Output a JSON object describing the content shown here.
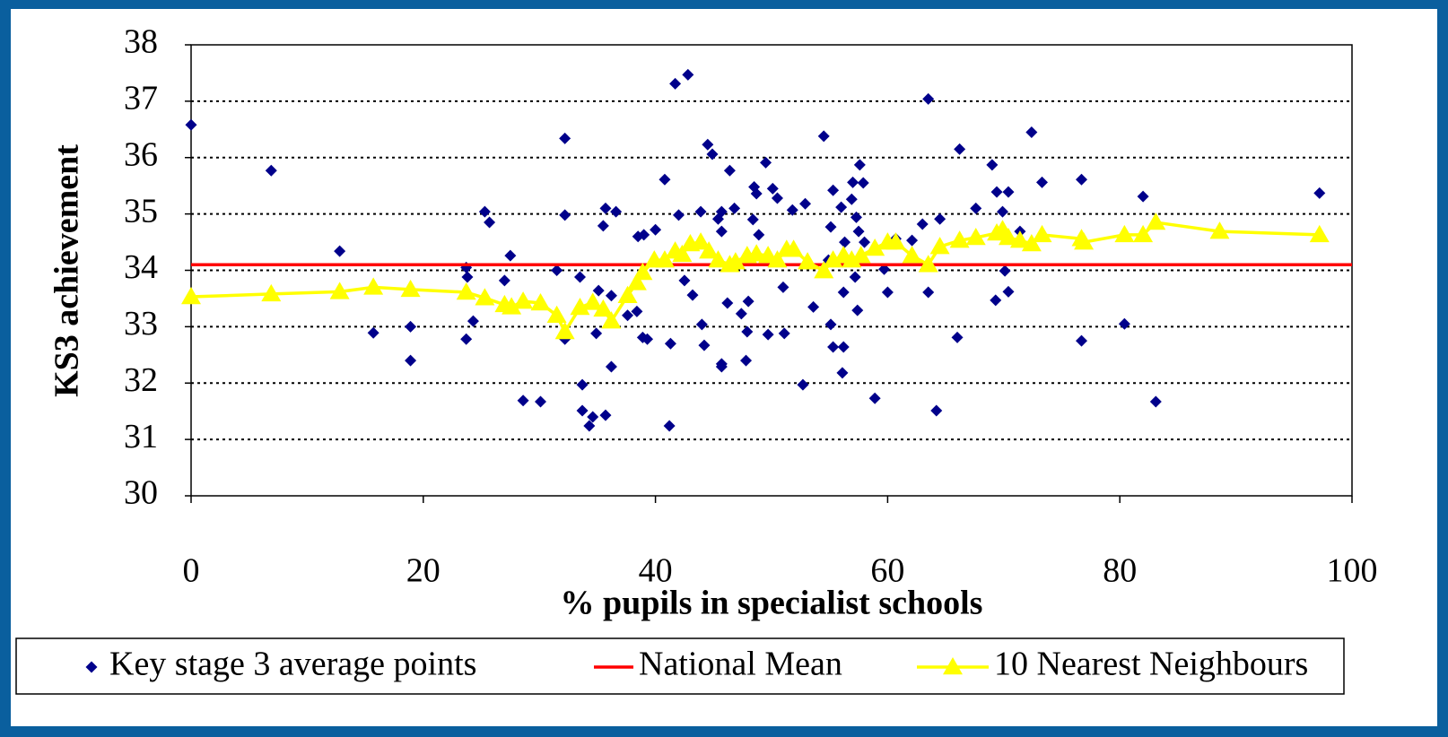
{
  "chart_data": {
    "type": "scatter",
    "xlabel": "% pupils in specialist schools",
    "ylabel": "KS3 achievement",
    "xlim": [
      0,
      100
    ],
    "xticks": [
      0,
      20,
      40,
      60,
      80,
      100
    ],
    "ylim": [
      30,
      38
    ],
    "yticks": [
      30,
      31,
      32,
      33,
      34,
      35,
      36,
      37,
      38
    ],
    "grid": true,
    "legend": "bottom",
    "series": [
      {
        "name": "Key stage 3 average points",
        "type": "scatter",
        "marker": "diamond",
        "color": "#00008b",
        "x": [
          0,
          6.9,
          12.8,
          15.7,
          18.9,
          18.9,
          23.7,
          23.8,
          23.7,
          24.3,
          25.3,
          25.7,
          27.5,
          27.0,
          28.6,
          30.1,
          31.5,
          32.2,
          32.2,
          32.2,
          33.5,
          33.7,
          33.7,
          34.3,
          34.6,
          34.9,
          35.1,
          35.5,
          35.7,
          35.7,
          36.6,
          36.2,
          36.2,
          37.6,
          38.4,
          38.5,
          39.0,
          38.9,
          39.3,
          40.0,
          40.8,
          41.3,
          41.2,
          41.7,
          42.8,
          42.0,
          42.5,
          43.2,
          43.9,
          44.0,
          44.2,
          44.5,
          44.9,
          45.4,
          45.7,
          45.7,
          45.7,
          45.7,
          46.4,
          46.2,
          46.8,
          47.4,
          48.0,
          47.9,
          47.8,
          48.5,
          48.4,
          48.7,
          48.9,
          49.5,
          49.7,
          50.1,
          50.5,
          51.1,
          51.0,
          51.8,
          52.9,
          52.7,
          53.6,
          54.5,
          54.9,
          55.3,
          55.1,
          55.1,
          55.3,
          56.0,
          56.3,
          56.2,
          56.2,
          56.1,
          56.9,
          57.0,
          57.2,
          57.3,
          57.4,
          57.5,
          57.6,
          57.9,
          58.0,
          58.9,
          59.7,
          60.0,
          60.7,
          62.1,
          63.0,
          63.5,
          63.5,
          64.2,
          64.5,
          66.0,
          66.2,
          67.6,
          69.0,
          69.4,
          69.3,
          69.9,
          70.1,
          70.4,
          70.4,
          71.4,
          72.4,
          73.3,
          76.7,
          76.7,
          80.4,
          82.0,
          83.1,
          97.2
        ],
        "values": [
          36.58,
          35.77,
          34.34,
          32.89,
          33.0,
          32.4,
          34.05,
          33.88,
          32.78,
          33.1,
          35.04,
          34.85,
          34.26,
          33.82,
          31.69,
          31.67,
          34.0,
          36.34,
          34.98,
          32.78,
          33.88,
          31.97,
          31.51,
          31.24,
          31.4,
          32.88,
          33.64,
          34.79,
          35.1,
          31.43,
          35.04,
          33.55,
          32.29,
          33.2,
          33.27,
          34.6,
          34.63,
          32.81,
          32.78,
          34.72,
          35.61,
          32.7,
          31.24,
          37.31,
          37.47,
          34.98,
          33.82,
          33.56,
          35.04,
          33.04,
          32.67,
          36.23,
          36.06,
          34.91,
          35.04,
          34.69,
          32.34,
          32.29,
          35.77,
          33.42,
          35.1,
          33.23,
          33.45,
          32.91,
          32.4,
          35.48,
          34.9,
          35.36,
          34.63,
          35.91,
          32.86,
          35.45,
          35.28,
          32.88,
          33.7,
          35.07,
          35.18,
          31.97,
          33.35,
          36.38,
          34.18,
          35.42,
          34.77,
          33.04,
          32.64,
          35.12,
          34.5,
          33.61,
          32.64,
          32.18,
          35.26,
          35.56,
          33.88,
          34.94,
          33.29,
          34.69,
          35.87,
          35.55,
          34.5,
          31.73,
          34.02,
          33.61,
          34.56,
          34.53,
          34.82,
          37.04,
          33.61,
          31.51,
          34.91,
          32.81,
          36.15,
          35.1,
          35.87,
          35.39,
          33.47,
          35.04,
          33.99,
          35.39,
          33.62,
          34.69,
          36.45,
          35.56,
          35.61,
          32.75,
          33.05,
          35.31,
          31.67,
          35.37
        ]
      },
      {
        "name": "National Mean",
        "type": "line",
        "color": "#ff0000",
        "x": [
          0,
          100
        ],
        "values": [
          34.1,
          34.1
        ]
      },
      {
        "name": "10 Nearest Neighbours",
        "type": "line",
        "marker": "triangle",
        "color": "#ffff00",
        "x": [
          0,
          6.9,
          12.8,
          15.7,
          18.9,
          23.7,
          25.3,
          27.0,
          27.6,
          28.6,
          30.1,
          31.5,
          32.2,
          33.5,
          34.6,
          35.5,
          36.2,
          37.6,
          38.4,
          38.9,
          39.9,
          40.8,
          41.7,
          42.3,
          43.0,
          43.9,
          44.6,
          45.4,
          46.4,
          46.9,
          47.9,
          48.7,
          49.7,
          50.5,
          51.3,
          51.9,
          53.1,
          54.5,
          55.3,
          56.2,
          56.9,
          57.7,
          58.9,
          60.0,
          60.7,
          62.1,
          63.5,
          64.5,
          66.2,
          67.6,
          69.4,
          69.9,
          70.4,
          71.4,
          72.4,
          73.3,
          76.7,
          76.9,
          80.4,
          82.0,
          83.1,
          88.6,
          97.2
        ],
        "values": [
          33.53,
          33.58,
          33.62,
          33.7,
          33.66,
          33.61,
          33.51,
          33.39,
          33.35,
          33.45,
          33.42,
          33.2,
          32.91,
          33.34,
          33.43,
          33.31,
          33.1,
          33.55,
          33.78,
          33.96,
          34.18,
          34.18,
          34.34,
          34.28,
          34.47,
          34.5,
          34.34,
          34.18,
          34.1,
          34.15,
          34.26,
          34.29,
          34.26,
          34.18,
          34.37,
          34.37,
          34.15,
          33.99,
          34.18,
          34.26,
          34.18,
          34.26,
          34.39,
          34.5,
          34.5,
          34.26,
          34.1,
          34.42,
          34.53,
          34.58,
          34.66,
          34.72,
          34.58,
          34.53,
          34.47,
          34.63,
          34.56,
          34.5,
          34.63,
          34.63,
          34.85,
          34.69,
          34.63
        ]
      }
    ]
  }
}
